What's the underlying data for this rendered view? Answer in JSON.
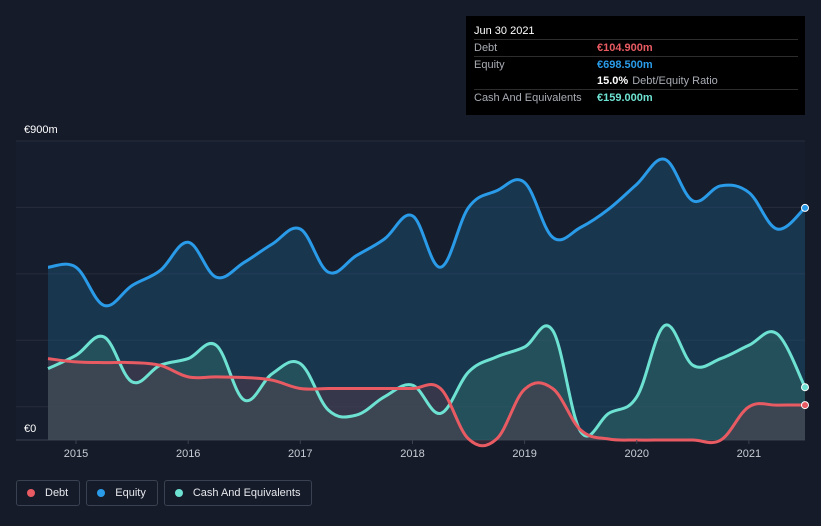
{
  "tooltip": {
    "date": "Jun 30 2021",
    "debt_label": "Debt",
    "debt_value": "€104.900m",
    "equity_label": "Equity",
    "equity_value": "€698.500m",
    "ratio_value": "15.0%",
    "ratio_label": "Debt/Equity Ratio",
    "cash_label": "Cash And Equivalents",
    "cash_value": "€159.000m"
  },
  "colors": {
    "debt": "#e85b63",
    "equity": "#2a9be8",
    "cash": "#6ee2d2",
    "background": "#151b29"
  },
  "legend": [
    {
      "key": "debt",
      "label": "Debt",
      "color": "#e85b63"
    },
    {
      "key": "equity",
      "label": "Equity",
      "color": "#2a9be8"
    },
    {
      "key": "cash",
      "label": "Cash And Equivalents",
      "color": "#6ee2d2"
    }
  ],
  "chart_data": {
    "type": "area",
    "ylabel_top": "€900m",
    "ylabel_bottom": "€0",
    "ylim": [
      0,
      900
    ],
    "x_ticks": [
      "2015",
      "2016",
      "2017",
      "2018",
      "2019",
      "2020",
      "2021"
    ],
    "xlim": [
      2014.75,
      2021.5
    ],
    "grid": true,
    "series": [
      {
        "name": "Equity",
        "points": [
          [
            2014.75,
            520
          ],
          [
            2015.0,
            520
          ],
          [
            2015.25,
            405
          ],
          [
            2015.5,
            465
          ],
          [
            2015.75,
            510
          ],
          [
            2016.0,
            595
          ],
          [
            2016.25,
            490
          ],
          [
            2016.5,
            535
          ],
          [
            2016.75,
            590
          ],
          [
            2017.0,
            635
          ],
          [
            2017.25,
            505
          ],
          [
            2017.5,
            555
          ],
          [
            2017.75,
            605
          ],
          [
            2018.0,
            675
          ],
          [
            2018.25,
            520
          ],
          [
            2018.5,
            700
          ],
          [
            2018.75,
            750
          ],
          [
            2019.0,
            775
          ],
          [
            2019.25,
            610
          ],
          [
            2019.5,
            640
          ],
          [
            2019.75,
            695
          ],
          [
            2020.0,
            770
          ],
          [
            2020.25,
            845
          ],
          [
            2020.5,
            720
          ],
          [
            2020.75,
            765
          ],
          [
            2021.0,
            745
          ],
          [
            2021.25,
            635
          ],
          [
            2021.5,
            698.5
          ]
        ]
      },
      {
        "name": "Cash And Equivalents",
        "points": [
          [
            2014.75,
            215
          ],
          [
            2015.0,
            255
          ],
          [
            2015.25,
            310
          ],
          [
            2015.5,
            175
          ],
          [
            2015.75,
            225
          ],
          [
            2016.0,
            245
          ],
          [
            2016.25,
            285
          ],
          [
            2016.5,
            120
          ],
          [
            2016.75,
            200
          ],
          [
            2017.0,
            230
          ],
          [
            2017.25,
            90
          ],
          [
            2017.5,
            75
          ],
          [
            2017.75,
            130
          ],
          [
            2018.0,
            165
          ],
          [
            2018.25,
            80
          ],
          [
            2018.5,
            205
          ],
          [
            2018.75,
            250
          ],
          [
            2019.0,
            280
          ],
          [
            2019.25,
            330
          ],
          [
            2019.5,
            25
          ],
          [
            2019.75,
            80
          ],
          [
            2020.0,
            130
          ],
          [
            2020.25,
            345
          ],
          [
            2020.5,
            225
          ],
          [
            2020.75,
            245
          ],
          [
            2021.0,
            285
          ],
          [
            2021.25,
            320
          ],
          [
            2021.5,
            159
          ]
        ]
      },
      {
        "name": "Debt",
        "points": [
          [
            2014.75,
            245
          ],
          [
            2015.0,
            235
          ],
          [
            2015.25,
            233
          ],
          [
            2015.5,
            233
          ],
          [
            2015.75,
            225
          ],
          [
            2016.0,
            190
          ],
          [
            2016.25,
            190
          ],
          [
            2016.5,
            188
          ],
          [
            2016.75,
            180
          ],
          [
            2017.0,
            155
          ],
          [
            2017.25,
            155
          ],
          [
            2017.5,
            155
          ],
          [
            2017.75,
            155
          ],
          [
            2018.0,
            155
          ],
          [
            2018.25,
            155
          ],
          [
            2018.5,
            3
          ],
          [
            2018.75,
            3
          ],
          [
            2019.0,
            153
          ],
          [
            2019.25,
            155
          ],
          [
            2019.5,
            30
          ],
          [
            2019.75,
            3
          ],
          [
            2020.0,
            0
          ],
          [
            2020.25,
            0
          ],
          [
            2020.5,
            0
          ],
          [
            2020.75,
            0
          ],
          [
            2021.0,
            100
          ],
          [
            2021.25,
            105
          ],
          [
            2021.5,
            104.9
          ]
        ]
      }
    ]
  }
}
